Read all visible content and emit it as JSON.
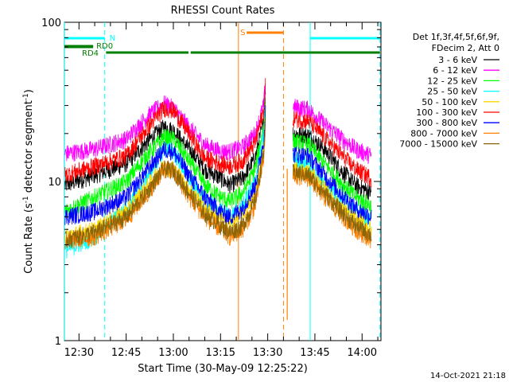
{
  "chart_data": {
    "type": "line",
    "title": "RHESSI Count Rates",
    "xlabel": "Start Time (30-May-09 12:25:22)",
    "ylabel_main": "Count Rate (s",
    "ylabel_sup1": "-1",
    "ylabel_mid": " detector segment",
    "ylabel_sup2": "-1",
    "ylabel_end": ")",
    "y_scale": "log",
    "ylim": [
      1,
      100
    ],
    "y_ticks": [
      {
        "value": 1,
        "label": "1"
      },
      {
        "value": 10,
        "label": "10"
      },
      {
        "value": 100,
        "label": "100"
      }
    ],
    "x_ticks": [
      {
        "value": "12:30",
        "minutes": 30
      },
      {
        "value": "12:45",
        "minutes": 45
      },
      {
        "value": "13:00",
        "minutes": 60
      },
      {
        "value": "13:15",
        "minutes": 75
      },
      {
        "value": "13:30",
        "minutes": 90
      },
      {
        "value": "13:45",
        "minutes": 105
      },
      {
        "value": "14:00",
        "minutes": 120
      }
    ],
    "xlim_minutes": [
      25.37,
      126.0
    ],
    "legend_header": [
      "Det 1f,3f,4f,5f,6f,9f,",
      "FDecim 2, Att 0"
    ],
    "series": [
      {
        "name": "3 - 6 keV",
        "color": "#000000",
        "values": [
          [
            25.5,
            9.5
          ],
          [
            35,
            11
          ],
          [
            45,
            13
          ],
          [
            52,
            18
          ],
          [
            57,
            22
          ],
          [
            60,
            21
          ],
          [
            65,
            16
          ],
          [
            70,
            12
          ],
          [
            75,
            10.5
          ],
          [
            78,
            9.5
          ],
          [
            82,
            10.5
          ],
          [
            86,
            14
          ],
          [
            88.7,
            24
          ],
          [
            89.3,
            38
          ],
          [
            90,
            null
          ],
          [
            98,
            20
          ],
          [
            103,
            19.5
          ],
          [
            108,
            16
          ],
          [
            113,
            12
          ],
          [
            118,
            9.5
          ],
          [
            123,
            8.5
          ]
        ]
      },
      {
        "name": "6 - 12 keV",
        "color": "#ff00ff",
        "values": [
          [
            25.5,
            15
          ],
          [
            35,
            16
          ],
          [
            45,
            18.5
          ],
          [
            52,
            26
          ],
          [
            57,
            31
          ],
          [
            60,
            29
          ],
          [
            65,
            22
          ],
          [
            70,
            17
          ],
          [
            75,
            15.5
          ],
          [
            78,
            15.5
          ],
          [
            82,
            16.5
          ],
          [
            86,
            20
          ],
          [
            88.7,
            30
          ],
          [
            89.3,
            42
          ],
          [
            90,
            null
          ],
          [
            98,
            29.5
          ],
          [
            103,
            28.5
          ],
          [
            108,
            23
          ],
          [
            113,
            19
          ],
          [
            118,
            16
          ],
          [
            123,
            14.5
          ]
        ]
      },
      {
        "name": "12 - 25 keV",
        "color": "#00ff00",
        "values": [
          [
            25.5,
            6.5
          ],
          [
            35,
            8
          ],
          [
            45,
            10
          ],
          [
            52,
            15
          ],
          [
            57,
            19
          ],
          [
            60,
            18.5
          ],
          [
            65,
            13.5
          ],
          [
            70,
            9.5
          ],
          [
            75,
            8
          ],
          [
            78,
            7.5
          ],
          [
            82,
            8.5
          ],
          [
            86,
            12
          ],
          [
            88.7,
            22
          ],
          [
            89.3,
            34
          ],
          [
            90,
            null
          ],
          [
            98,
            18
          ],
          [
            103,
            17
          ],
          [
            108,
            13
          ],
          [
            113,
            10
          ],
          [
            118,
            8
          ],
          [
            123,
            7
          ]
        ]
      },
      {
        "name": "25 - 50 keV",
        "color": "#00ffff",
        "values": [
          [
            25.5,
            3.7
          ],
          [
            35,
            4.5
          ],
          [
            45,
            6.8
          ],
          [
            52,
            11
          ],
          [
            57,
            16
          ],
          [
            60,
            15.5
          ],
          [
            65,
            10.5
          ],
          [
            70,
            7.5
          ],
          [
            75,
            6.5
          ],
          [
            78,
            6
          ],
          [
            82,
            7
          ],
          [
            86,
            10
          ],
          [
            88.7,
            19
          ],
          [
            89.3,
            30
          ],
          [
            90,
            null
          ],
          [
            98,
            14
          ],
          [
            103,
            13
          ],
          [
            108,
            10
          ],
          [
            113,
            8
          ],
          [
            118,
            6.5
          ],
          [
            123,
            5.5
          ]
        ]
      },
      {
        "name": "50 - 100 keV",
        "color": "#ffd700",
        "values": [
          [
            25.5,
            4.5
          ],
          [
            35,
            5
          ],
          [
            45,
            6.5
          ],
          [
            52,
            9.5
          ],
          [
            57,
            12.5
          ],
          [
            60,
            12
          ],
          [
            65,
            9
          ],
          [
            70,
            6.8
          ],
          [
            75,
            5.8
          ],
          [
            78,
            5.5
          ],
          [
            82,
            6.2
          ],
          [
            86,
            8.5
          ],
          [
            88.7,
            16
          ],
          [
            89.3,
            26
          ],
          [
            90,
            null
          ],
          [
            98,
            12
          ],
          [
            103,
            11.5
          ],
          [
            108,
            9
          ],
          [
            113,
            7
          ],
          [
            118,
            5.8
          ],
          [
            123,
            5
          ]
        ]
      },
      {
        "name": "100 - 300 keV",
        "color": "#ff0000",
        "values": [
          [
            25.5,
            11
          ],
          [
            35,
            12.5
          ],
          [
            45,
            14.5
          ],
          [
            52,
            22
          ],
          [
            57,
            29
          ],
          [
            60,
            28
          ],
          [
            65,
            20
          ],
          [
            70,
            14
          ],
          [
            75,
            13
          ],
          [
            78,
            12.5
          ],
          [
            82,
            13.5
          ],
          [
            86,
            17.5
          ],
          [
            88.7,
            28
          ],
          [
            89.3,
            40
          ],
          [
            90,
            null
          ],
          [
            98,
            25
          ],
          [
            103,
            24
          ],
          [
            108,
            19
          ],
          [
            113,
            15
          ],
          [
            118,
            12
          ],
          [
            123,
            10.5
          ]
        ]
      },
      {
        "name": "300 - 800 keV",
        "color": "#0000ff",
        "values": [
          [
            25.5,
            6
          ],
          [
            35,
            6.5
          ],
          [
            45,
            8
          ],
          [
            52,
            12
          ],
          [
            57,
            16
          ],
          [
            60,
            15.5
          ],
          [
            65,
            11
          ],
          [
            70,
            8
          ],
          [
            75,
            6.5
          ],
          [
            78,
            6
          ],
          [
            82,
            6.8
          ],
          [
            86,
            9.5
          ],
          [
            88.7,
            18
          ],
          [
            89.3,
            28
          ],
          [
            90,
            null
          ],
          [
            98,
            15
          ],
          [
            103,
            14.5
          ],
          [
            108,
            11
          ],
          [
            113,
            8.5
          ],
          [
            118,
            6.8
          ],
          [
            123,
            6
          ]
        ]
      },
      {
        "name": "800 - 7000 keV",
        "color": "#ff8000",
        "values": [
          [
            25.5,
            4.2
          ],
          [
            35,
            4.5
          ],
          [
            45,
            5.8
          ],
          [
            52,
            8.5
          ],
          [
            57,
            12
          ],
          [
            60,
            11.5
          ],
          [
            65,
            8
          ],
          [
            70,
            6
          ],
          [
            75,
            5
          ],
          [
            78,
            4.5
          ],
          [
            82,
            5
          ],
          [
            86,
            7
          ],
          [
            88.7,
            14
          ],
          [
            89.3,
            22
          ],
          [
            90,
            null
          ],
          [
            98,
            11
          ],
          [
            103,
            10.5
          ],
          [
            108,
            8
          ],
          [
            113,
            6.3
          ],
          [
            118,
            5
          ],
          [
            123,
            4.3
          ]
        ]
      },
      {
        "name": "7000 - 15000 keV",
        "color": "#8b6508",
        "values": [
          [
            25.5,
            4.3
          ],
          [
            35,
            4.8
          ],
          [
            45,
            6
          ],
          [
            52,
            8.8
          ],
          [
            57,
            12
          ],
          [
            60,
            11.8
          ],
          [
            65,
            8.5
          ],
          [
            70,
            6.3
          ],
          [
            75,
            5.3
          ],
          [
            78,
            4.8
          ],
          [
            82,
            5.3
          ],
          [
            86,
            7.5
          ],
          [
            88.7,
            15
          ],
          [
            89.3,
            23
          ],
          [
            90,
            null
          ],
          [
            98,
            11.5
          ],
          [
            103,
            11
          ],
          [
            108,
            8.5
          ],
          [
            113,
            6.6
          ],
          [
            118,
            5.3
          ],
          [
            123,
            4.6
          ]
        ]
      }
    ],
    "vertical_lines": [
      {
        "minutes": 25.4,
        "color": "#00ffff",
        "style": "solid"
      },
      {
        "minutes": 38.2,
        "color": "#00ffff",
        "style": "dashed"
      },
      {
        "minutes": 80.7,
        "color": "#ff8000",
        "style": "solid"
      },
      {
        "minutes": 95.0,
        "color": "#ff8000",
        "style": "dashed"
      },
      {
        "minutes": 103.5,
        "color": "#00ffff",
        "style": "solid"
      },
      {
        "minutes": 125.7,
        "color": "#00ffff",
        "style": "dashed"
      }
    ],
    "flag_bars": [
      {
        "label": "N",
        "color": "#00ffff",
        "segments": [
          [
            25.4,
            38.2
          ],
          [
            103.5,
            125.7
          ]
        ],
        "level": 0
      },
      {
        "label": "S",
        "color": "#ff8000",
        "segments": [
          [
            83.3,
            95.0
          ]
        ],
        "level": -1
      },
      {
        "label": "RD0",
        "color": "#008000",
        "segments": [
          [
            25.4,
            34.5
          ]
        ],
        "level": 1
      },
      {
        "label": "RD4",
        "color": "#008000",
        "segments": [
          [
            38.6,
            64.8
          ],
          [
            65.5,
            125.7
          ]
        ],
        "level": 2
      },
      {
        "label": "",
        "color": "#008000",
        "segments": [
          [
            25.4,
            34.5
          ]
        ],
        "level": 3
      }
    ],
    "drop": {
      "minutes": 96.2,
      "value": 1.35,
      "color": "#ff8000"
    },
    "timestamp": "14-Oct-2021 21:18"
  }
}
